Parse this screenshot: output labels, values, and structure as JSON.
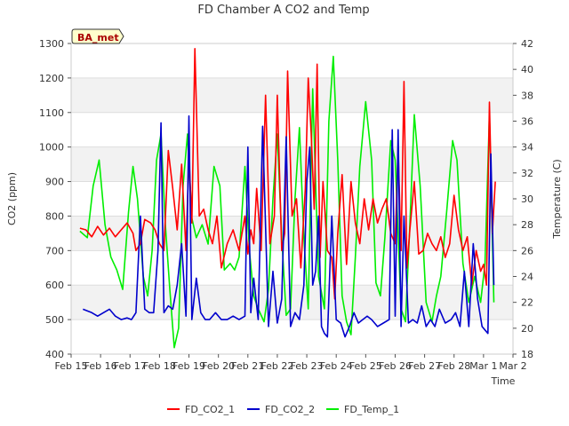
{
  "chart_data": {
    "type": "line",
    "title": "FD Chamber A CO2 and Temp",
    "xlabel": "Time",
    "ylabel": "CO2 (ppm)",
    "y2label": "Temperature (C)",
    "site_label": "BA_met",
    "xlim": [
      15,
      30
    ],
    "ylim": [
      400,
      1300
    ],
    "y2lim": [
      18,
      42
    ],
    "x_ticks": [
      {
        "v": 15,
        "label": "Feb 15"
      },
      {
        "v": 16,
        "label": "Feb 16"
      },
      {
        "v": 17,
        "label": "Feb 17"
      },
      {
        "v": 18,
        "label": "Feb 18"
      },
      {
        "v": 19,
        "label": "Feb 19"
      },
      {
        "v": 20,
        "label": "Feb 20"
      },
      {
        "v": 21,
        "label": "Feb 21"
      },
      {
        "v": 22,
        "label": "Feb 22"
      },
      {
        "v": 23,
        "label": "Feb 23"
      },
      {
        "v": 24,
        "label": "Feb 24"
      },
      {
        "v": 25,
        "label": "Feb 25"
      },
      {
        "v": 26,
        "label": "Feb 26"
      },
      {
        "v": 27,
        "label": "Feb 27"
      },
      {
        "v": 28,
        "label": "Feb 28"
      },
      {
        "v": 29,
        "label": "Mar 1"
      },
      {
        "v": 30,
        "label": "Mar 2"
      }
    ],
    "y_ticks": [
      400,
      500,
      600,
      700,
      800,
      900,
      1000,
      1100,
      1200,
      1300
    ],
    "y2_ticks": [
      18,
      20,
      22,
      24,
      26,
      28,
      30,
      32,
      34,
      36,
      38,
      40,
      42
    ],
    "colors": {
      "FD_CO2_1": "#ff0000",
      "FD_CO2_2": "#0000cc",
      "FD_Temp_1": "#00ee00"
    },
    "series": [
      {
        "name": "FD_CO2_1",
        "axis": "left",
        "x": [
          15.3,
          15.5,
          15.7,
          15.9,
          16.1,
          16.3,
          16.5,
          16.7,
          16.9,
          17.1,
          17.2,
          17.35,
          17.5,
          17.7,
          17.85,
          18.0,
          18.15,
          18.3,
          18.45,
          18.6,
          18.75,
          18.9,
          19.0,
          19.1,
          19.2,
          19.35,
          19.5,
          19.65,
          19.8,
          19.95,
          20.1,
          20.3,
          20.5,
          20.7,
          20.9,
          21.0,
          21.1,
          21.2,
          21.3,
          21.45,
          21.6,
          21.75,
          21.9,
          22.0,
          22.15,
          22.25,
          22.35,
          22.5,
          22.65,
          22.8,
          22.95,
          23.05,
          23.15,
          23.25,
          23.35,
          23.45,
          23.55,
          23.7,
          23.85,
          23.95,
          24.05,
          24.2,
          24.35,
          24.5,
          24.65,
          24.8,
          24.95,
          25.1,
          25.25,
          25.4,
          25.55,
          25.7,
          25.85,
          26.0,
          26.1,
          26.2,
          26.3,
          26.4,
          26.5,
          26.65,
          26.8,
          26.95,
          27.1,
          27.25,
          27.4,
          27.55,
          27.7,
          27.85,
          28.0,
          28.15,
          28.3,
          28.45,
          28.6,
          28.75,
          28.9,
          29.0,
          29.1,
          29.2,
          29.3,
          29.4
        ],
        "y": [
          765,
          760,
          740,
          770,
          745,
          765,
          740,
          760,
          780,
          750,
          700,
          720,
          790,
          780,
          760,
          720,
          700,
          990,
          880,
          760,
          950,
          700,
          980,
          780,
          1285,
          800,
          820,
          760,
          720,
          800,
          650,
          720,
          760,
          700,
          800,
          690,
          760,
          720,
          880,
          700,
          1150,
          720,
          800,
          1150,
          700,
          750,
          1220,
          800,
          850,
          650,
          880,
          1200,
          1040,
          820,
          1240,
          680,
          900,
          700,
          680,
          560,
          750,
          920,
          660,
          900,
          780,
          720,
          850,
          760,
          850,
          780,
          820,
          850,
          750,
          720,
          1000,
          700,
          1190,
          650,
          760,
          900,
          690,
          700,
          750,
          720,
          700,
          740,
          680,
          720,
          860,
          760,
          700,
          740,
          600,
          700,
          640,
          660,
          600,
          1130,
          750,
          900
        ]
      },
      {
        "name": "FD_CO2_2",
        "axis": "left",
        "x": [
          15.4,
          15.7,
          15.9,
          16.1,
          16.3,
          16.5,
          16.7,
          16.9,
          17.05,
          17.2,
          17.35,
          17.5,
          17.65,
          17.8,
          17.95,
          18.05,
          18.15,
          18.3,
          18.45,
          18.6,
          18.75,
          18.9,
          19.0,
          19.1,
          19.25,
          19.4,
          19.55,
          19.7,
          19.9,
          20.1,
          20.3,
          20.5,
          20.7,
          20.9,
          21.0,
          21.1,
          21.2,
          21.35,
          21.5,
          21.7,
          21.85,
          22.0,
          22.15,
          22.3,
          22.45,
          22.6,
          22.75,
          22.9,
          23.0,
          23.1,
          23.2,
          23.3,
          23.4,
          23.5,
          23.6,
          23.7,
          23.85,
          24.0,
          24.15,
          24.3,
          24.45,
          24.6,
          24.75,
          24.9,
          25.05,
          25.2,
          25.4,
          25.6,
          25.8,
          25.9,
          26.0,
          26.1,
          26.2,
          26.3,
          26.45,
          26.6,
          26.75,
          26.9,
          27.05,
          27.2,
          27.35,
          27.5,
          27.7,
          27.9,
          28.05,
          28.2,
          28.35,
          28.5,
          28.65,
          28.8,
          28.95,
          29.05,
          29.15,
          29.25,
          29.35
        ],
        "y": [
          530,
          520,
          510,
          520,
          530,
          510,
          500,
          505,
          500,
          520,
          800,
          530,
          520,
          520,
          700,
          1070,
          520,
          540,
          530,
          600,
          720,
          510,
          1090,
          500,
          620,
          520,
          500,
          500,
          520,
          500,
          500,
          510,
          500,
          510,
          1000,
          520,
          620,
          500,
          1060,
          480,
          640,
          490,
          560,
          1030,
          480,
          520,
          500,
          600,
          900,
          1000,
          600,
          640,
          800,
          480,
          460,
          450,
          800,
          500,
          490,
          450,
          480,
          520,
          490,
          500,
          510,
          500,
          480,
          490,
          500,
          1050,
          510,
          1050,
          480,
          800,
          490,
          500,
          490,
          540,
          480,
          500,
          480,
          530,
          490,
          500,
          520,
          480,
          640,
          480,
          720,
          560,
          480,
          470,
          460,
          980,
          600
        ]
      },
      {
        "name": "FD_Temp_1",
        "axis": "right",
        "x": [
          15.3,
          15.55,
          15.75,
          15.95,
          16.15,
          16.35,
          16.55,
          16.75,
          16.95,
          17.1,
          17.25,
          17.45,
          17.6,
          17.75,
          17.9,
          18.05,
          18.2,
          18.35,
          18.5,
          18.65,
          18.8,
          18.95,
          19.1,
          19.25,
          19.45,
          19.65,
          19.85,
          20.05,
          20.2,
          20.4,
          20.55,
          20.7,
          20.9,
          21.05,
          21.2,
          21.35,
          21.55,
          21.7,
          21.85,
          22.0,
          22.15,
          22.3,
          22.45,
          22.6,
          22.75,
          22.9,
          23.05,
          23.2,
          23.4,
          23.6,
          23.75,
          23.9,
          24.05,
          24.2,
          24.35,
          24.5,
          24.65,
          24.8,
          25.0,
          25.2,
          25.35,
          25.5,
          25.65,
          25.85,
          26.0,
          26.2,
          26.35,
          26.5,
          26.65,
          26.85,
          27.05,
          27.25,
          27.4,
          27.55,
          27.75,
          27.95,
          28.1,
          28.3,
          28.5,
          28.7,
          28.9,
          29.05,
          29.2,
          29.35
        ],
        "y": [
          27.5,
          27.0,
          31.0,
          33.0,
          28.0,
          25.5,
          24.5,
          23.0,
          29.0,
          32.5,
          30.0,
          24.0,
          22.5,
          26.0,
          33.0,
          35.0,
          28.0,
          23.0,
          18.5,
          20.0,
          31.0,
          35.0,
          28.5,
          27.0,
          28.0,
          26.5,
          32.5,
          31.0,
          24.5,
          25.0,
          24.5,
          25.5,
          32.5,
          26.0,
          22.5,
          21.5,
          20.5,
          23.0,
          30.0,
          35.0,
          27.0,
          21.0,
          21.5,
          30.0,
          35.5,
          27.0,
          21.5,
          38.5,
          24.0,
          21.5,
          36.0,
          41.0,
          33.0,
          22.5,
          20.5,
          19.5,
          25.5,
          32.5,
          37.5,
          33.0,
          23.5,
          22.5,
          27.0,
          34.5,
          33.0,
          21.5,
          20.5,
          28.0,
          36.5,
          31.0,
          22.0,
          20.5,
          22.5,
          24.0,
          29.0,
          34.5,
          33.0,
          25.0,
          22.0,
          24.0,
          22.0,
          25.0,
          36.5,
          22.0
        ]
      }
    ]
  }
}
